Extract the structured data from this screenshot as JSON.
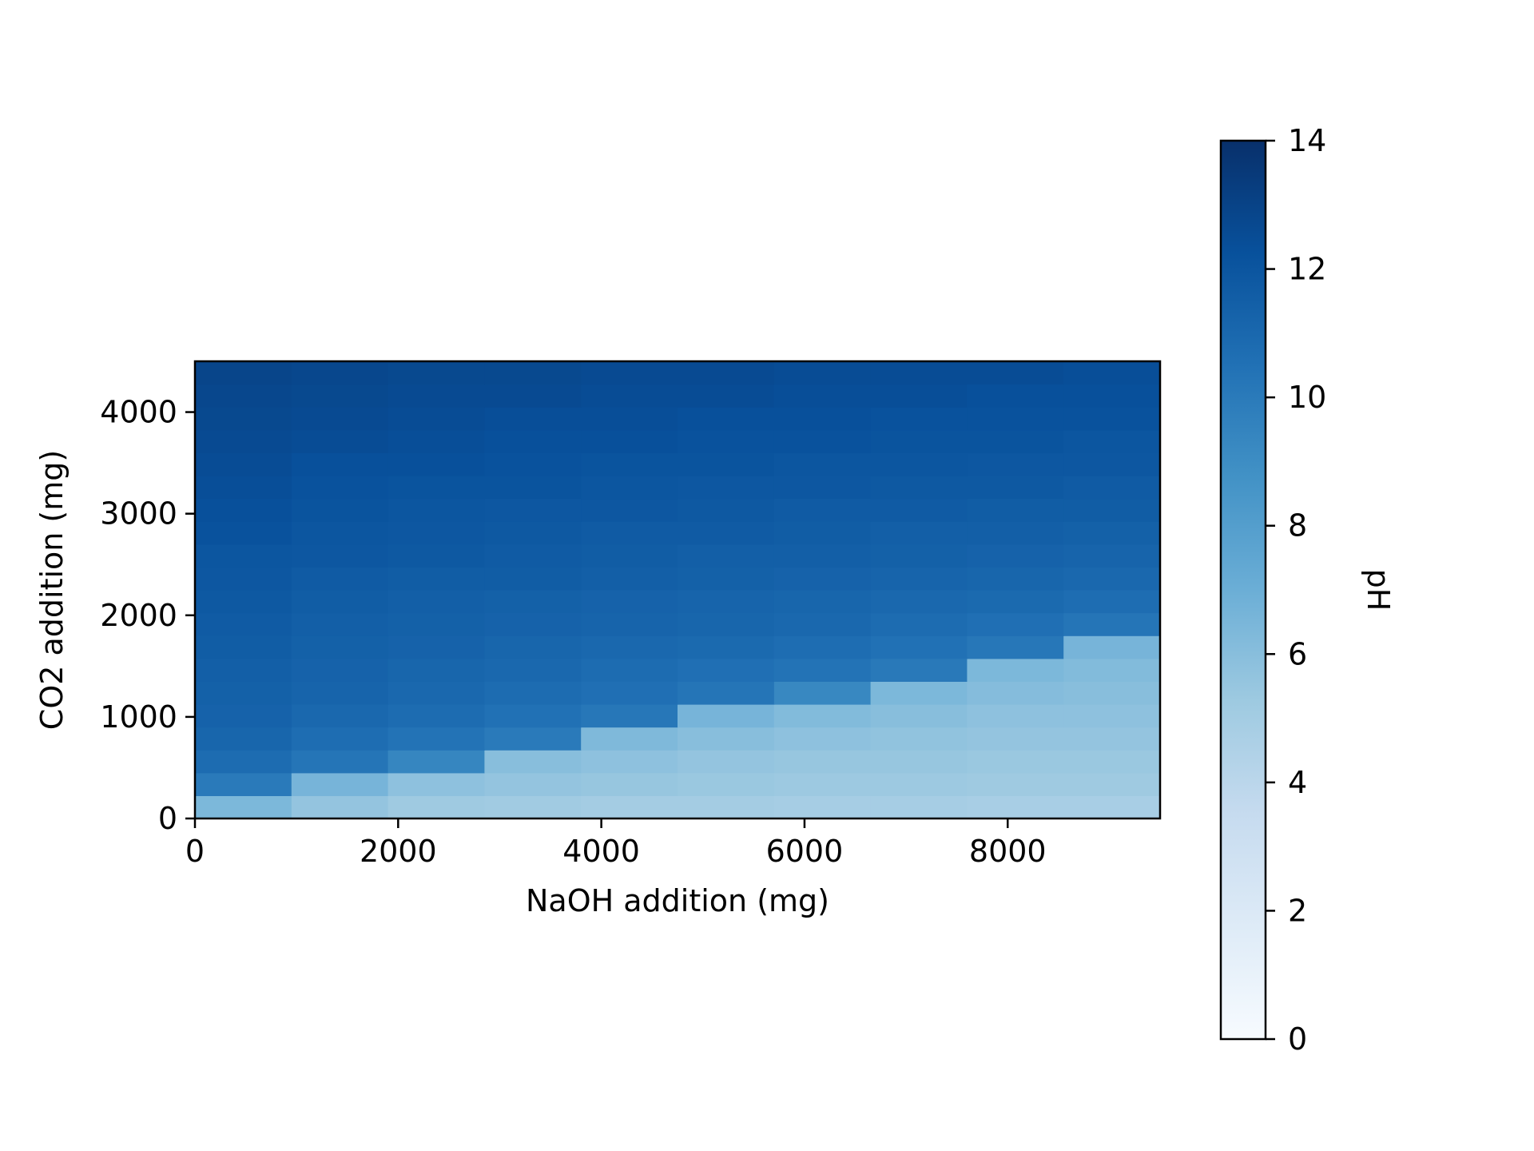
{
  "chart_data": {
    "type": "heatmap",
    "xlabel": "NaOH addition (mg)",
    "ylabel": "CO2 addition (mg)",
    "colorbar_label": "pH",
    "xlim": [
      0,
      9500
    ],
    "ylim": [
      0,
      4500
    ],
    "x_ticks": [
      0,
      2000,
      4000,
      6000,
      8000
    ],
    "y_ticks": [
      0,
      1000,
      2000,
      3000,
      4000
    ],
    "colorbar_ticks": [
      0,
      2,
      4,
      6,
      8,
      10,
      12,
      14
    ],
    "clim": [
      0,
      14
    ],
    "colormap": "Blues",
    "grid": false,
    "colorbar_position": "right",
    "x_bin_width": 950,
    "y_bin_width": 225,
    "note_rows": "values[i] is the row for CO2 bin starting at y_edges[i] (bottom to top); columns are NaOH bins starting at 0, 950, 1900, ...",
    "y_edges_start": 0,
    "values": [
      [
        6.4,
        5.6,
        5.2,
        5.1,
        5.0,
        5.0,
        4.9,
        4.9,
        4.8,
        4.8
      ],
      [
        10.0,
        6.6,
        5.8,
        5.6,
        5.5,
        5.4,
        5.3,
        5.3,
        5.2,
        5.2
      ],
      [
        10.8,
        10.3,
        9.4,
        6.0,
        5.8,
        5.6,
        5.5,
        5.5,
        5.4,
        5.4
      ],
      [
        11.1,
        10.7,
        10.4,
        10.0,
        6.3,
        6.0,
        5.8,
        5.7,
        5.6,
        5.6
      ],
      [
        11.3,
        11.0,
        10.8,
        10.5,
        10.2,
        6.6,
        6.2,
        6.0,
        5.8,
        5.8
      ],
      [
        11.4,
        11.2,
        11.0,
        10.8,
        10.6,
        10.3,
        9.3,
        6.4,
        6.1,
        6.0
      ],
      [
        11.5,
        11.3,
        11.1,
        11.0,
        10.8,
        10.6,
        10.4,
        10.1,
        6.4,
        6.2
      ],
      [
        11.6,
        11.4,
        11.3,
        11.1,
        11.0,
        10.9,
        10.7,
        10.5,
        10.2,
        6.6
      ],
      [
        11.7,
        11.5,
        11.4,
        11.3,
        11.2,
        11.1,
        11.0,
        10.8,
        10.6,
        10.3
      ],
      [
        11.8,
        11.6,
        11.5,
        11.4,
        11.3,
        11.2,
        11.1,
        11.0,
        10.9,
        10.7
      ],
      [
        11.9,
        11.7,
        11.6,
        11.6,
        11.5,
        11.4,
        11.3,
        11.2,
        11.1,
        11.0
      ],
      [
        12.0,
        11.9,
        11.8,
        11.7,
        11.6,
        11.5,
        11.5,
        11.4,
        11.3,
        11.2
      ],
      [
        12.2,
        12.0,
        11.9,
        11.8,
        11.7,
        11.7,
        11.6,
        11.5,
        11.5,
        11.4
      ],
      [
        12.3,
        12.1,
        12.0,
        11.9,
        11.9,
        11.8,
        11.7,
        11.7,
        11.6,
        11.6
      ],
      [
        12.4,
        12.2,
        12.1,
        12.1,
        12.0,
        11.9,
        11.9,
        11.8,
        11.8,
        11.7
      ],
      [
        12.5,
        12.3,
        12.3,
        12.2,
        12.1,
        12.1,
        12.0,
        12.0,
        11.9,
        11.9
      ],
      [
        12.6,
        12.5,
        12.4,
        12.3,
        12.3,
        12.2,
        12.2,
        12.1,
        12.1,
        12.0
      ],
      [
        12.7,
        12.6,
        12.5,
        12.4,
        12.4,
        12.3,
        12.3,
        12.2,
        12.2,
        12.2
      ],
      [
        12.8,
        12.7,
        12.6,
        12.6,
        12.5,
        12.5,
        12.4,
        12.4,
        12.3,
        12.3
      ],
      [
        12.9,
        12.8,
        12.7,
        12.7,
        12.6,
        12.6,
        12.5,
        12.5,
        12.5,
        12.4
      ]
    ]
  }
}
